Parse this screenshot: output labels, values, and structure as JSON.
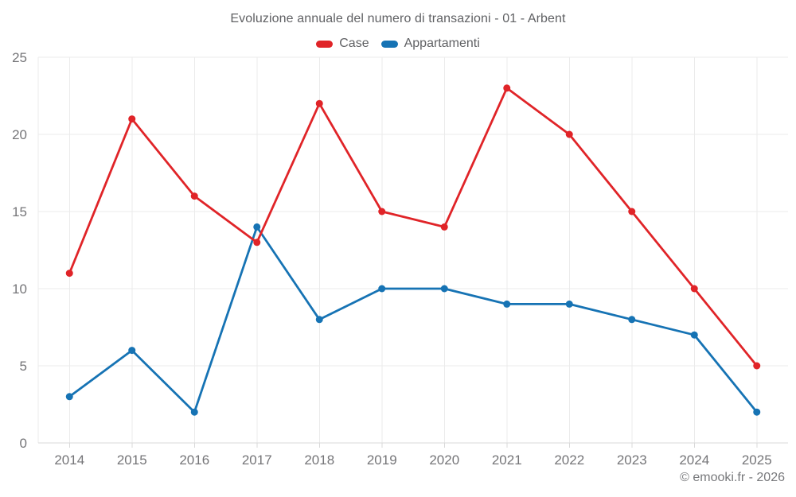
{
  "title": "Evoluzione annuale del numero di transazioni - 01 - Arbent",
  "footer": {
    "text": "© emooki.fr - 2026"
  },
  "colors": {
    "background": "#ffffff",
    "grid": "#ebebeb",
    "axis_line": "#d9d9d9",
    "tick_label": "#757578",
    "title_text": "#606164",
    "case_red": "#e02428",
    "appartamenti_blue": "#1673b4"
  },
  "chart_data": {
    "type": "line",
    "title": "Evoluzione annuale del numero di transazioni - 01 - Arbent",
    "xlabel": "",
    "ylabel": "",
    "categories": [
      "2014",
      "2015",
      "2016",
      "2017",
      "2018",
      "2019",
      "2020",
      "2021",
      "2022",
      "2023",
      "2024",
      "2025"
    ],
    "series": [
      {
        "name": "Case",
        "color": "#e02428",
        "values": [
          11,
          21,
          16,
          13,
          22,
          15,
          14,
          23,
          20,
          15,
          10,
          5
        ]
      },
      {
        "name": "Appartamenti",
        "color": "#1673b4",
        "values": [
          3,
          6,
          2,
          14,
          8,
          10,
          10,
          9,
          9,
          8,
          7,
          2
        ]
      }
    ],
    "ylim": [
      0,
      25
    ],
    "yticks": [
      0,
      5,
      10,
      15,
      20,
      25
    ],
    "grid": true,
    "legend_position": "top",
    "marker": "circle"
  }
}
